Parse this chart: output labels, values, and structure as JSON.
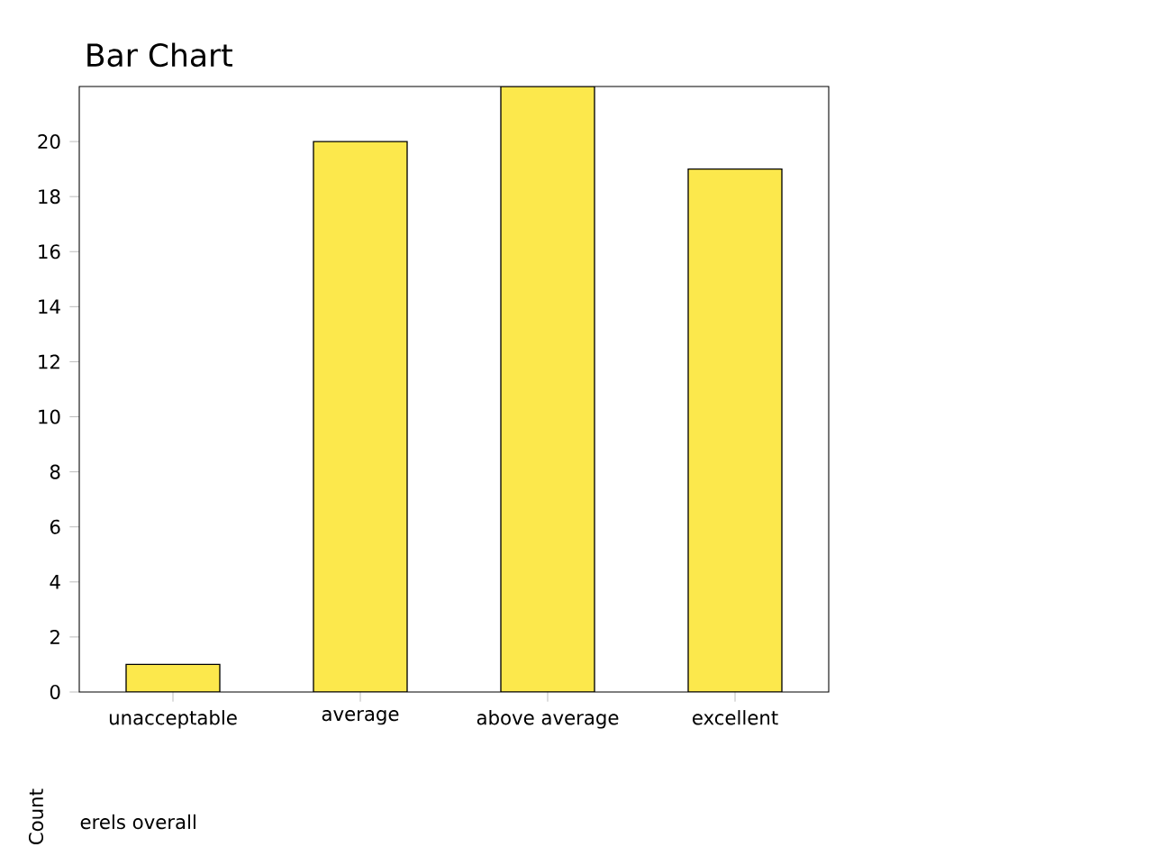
{
  "chart_data": {
    "type": "bar",
    "title": "Bar Chart",
    "xlabel": "erels overall",
    "ylabel": "Count",
    "categories": [
      "unacceptable",
      "average",
      "above average",
      "excellent"
    ],
    "values": [
      1,
      20,
      22,
      19
    ],
    "color": "#fce84c",
    "ylim": [
      0,
      22
    ],
    "yticks": [
      0,
      2,
      4,
      6,
      8,
      10,
      12,
      14,
      16,
      18,
      20
    ]
  }
}
